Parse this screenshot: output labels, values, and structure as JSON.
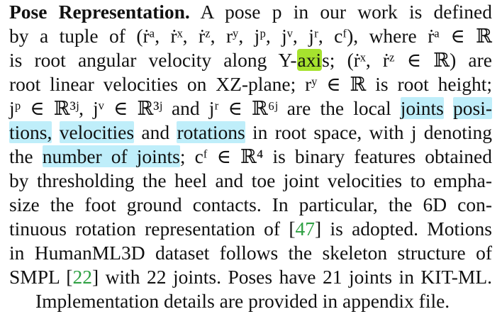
{
  "paragraph": {
    "heading": "Pose Representation.",
    "line1_text": "A pose p in our work is defined",
    "line2_text": "by a tuple of (ṙᵃ, ṙˣ, ṙᶻ, rʸ, jᵖ, jᵛ, jʳ, cᶠ), where ṙᵃ ∈ ℝ",
    "line3_pre": "is root angular velocity along Y-",
    "line3_hl": "axi",
    "line3_post": "s; (ṙˣ, ṙᶻ ∈ ℝ) are",
    "line4_text": "root linear velocities on XZ-plane; rʸ ∈ ℝ is root height;",
    "line5_pre": "jᵖ ∈ ℝ³ʲ, jᵛ ∈ ℝ³ʲ and jʳ ∈ ℝ⁶ʲ are the local",
    "line5_hl1": "joints",
    "line5_hl2": "posi-",
    "line6_hl1": "tions,",
    "line6_hl2": "velocities",
    "line6_mid": "and",
    "line6_hl3": "rotations",
    "line6_post": "in root space, with j denoting",
    "line7_pre": "the",
    "line7_hl": "number of joints",
    "line7_post": "; cᶠ ∈ ℝ⁴ is binary features obtained",
    "line8_text": "by thresholding the heel and toe joint velocities to empha-",
    "line9_text": "size the foot ground contacts. In particular, the 6D con-",
    "line10_pre": "tinuous rotation representation of [",
    "line10_cite": "47",
    "line10_post": "] is adopted. Motions",
    "line11_text": "in HumanML3D dataset follows the skeleton structure of",
    "line12_pre": "SMPL [",
    "line12_cite": "22",
    "line12_post": "] with 22 joints. Poses have 21 joints in KIT-ML.",
    "line13_text": "Implementation details are provided in appendix file."
  },
  "colors": {
    "highlight_blue": "#bfeefa",
    "highlight_green": "#a6e22e",
    "citation": "#2ea043",
    "text": "#111111"
  }
}
